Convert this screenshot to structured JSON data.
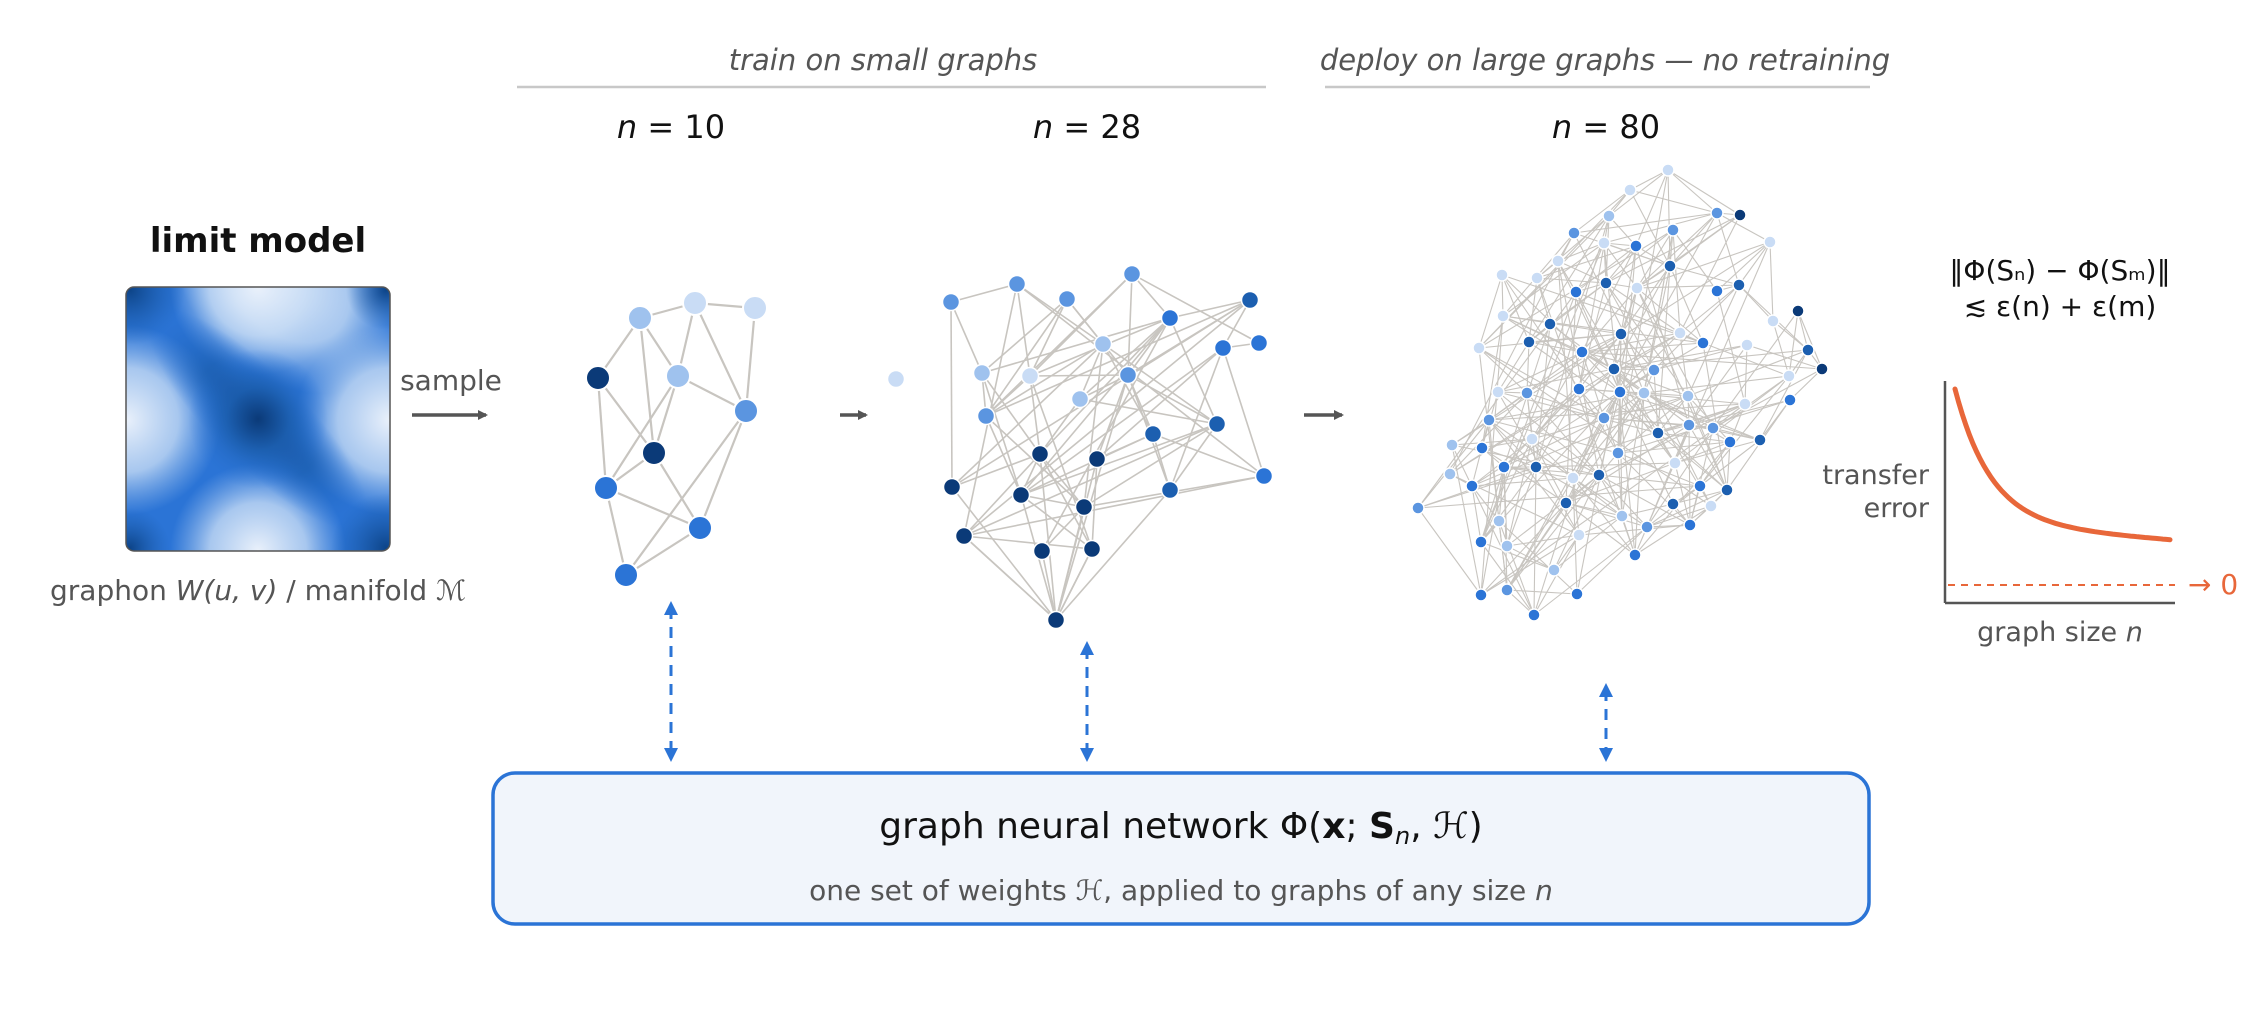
{
  "header": {
    "train_label": "train on small graphs",
    "deploy_label": "deploy on large graphs — no retraining"
  },
  "limit_model": {
    "title": "limit model",
    "sample_label": "sample",
    "caption_pre": "graphon ",
    "caption_W": "W",
    "caption_args": "(u, v)",
    "caption_mid": "  /  manifold ",
    "caption_M": "ℳ"
  },
  "graphs": [
    {
      "n_var": "n",
      "n_eq": " = ",
      "n_value": "10"
    },
    {
      "n_var": "n",
      "n_eq": " = ",
      "n_value": "28"
    },
    {
      "n_var": "n",
      "n_eq": " = ",
      "n_value": "80"
    }
  ],
  "gnn": {
    "title_pre": "graph neural network  Φ(",
    "title_x": "x",
    "title_sep": "; ",
    "title_S": "S",
    "title_sub": "n",
    "title_comma": ", ",
    "title_H": "ℋ",
    "title_post": ")",
    "subtitle_pre": "one set of weights ",
    "subtitle_H": "ℋ",
    "subtitle_mid": ", applied to graphs of any size ",
    "subtitle_n": "n"
  },
  "bound": {
    "line1": "‖Φ(Sₙ) − Φ(Sₘ)‖",
    "line2": "≲  ε(n) + ε(m)"
  },
  "error_chart": {
    "type": "line",
    "ylabel_line1": "transfer",
    "ylabel_line2": "error",
    "xlabel_pre": "graph size ",
    "xlabel_var": "n",
    "limit_label": "→ 0",
    "curve_color": "#e8673a",
    "asymptote_color": "#e8673a"
  },
  "colors": {
    "arrow": "#555555",
    "gnn_border": "#2b74d6",
    "gnn_fill": "#f1f5fb",
    "link_arrow": "#2b74d6",
    "edge": "#c8c5c0",
    "rule": "#c8c8c8"
  }
}
